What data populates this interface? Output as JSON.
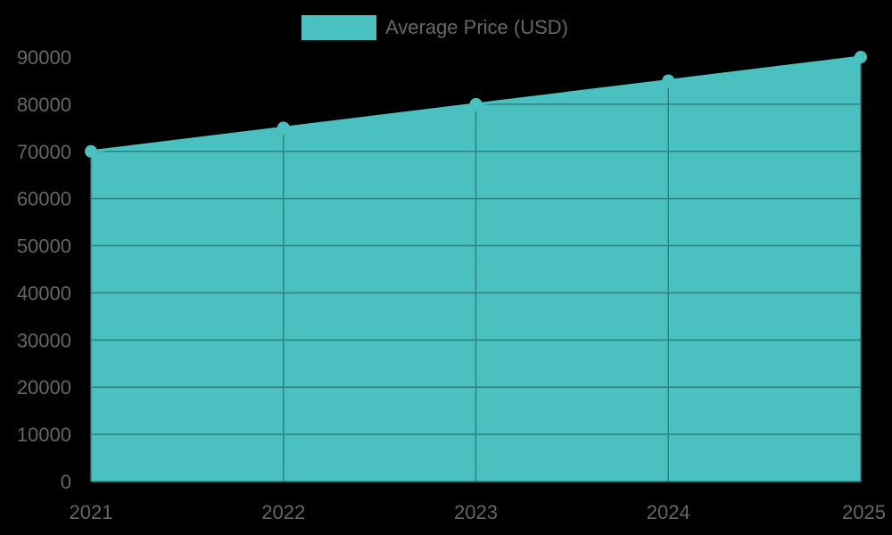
{
  "chart_data": {
    "type": "area",
    "title": "",
    "categories": [
      "2021",
      "2022",
      "2023",
      "2024",
      "2025"
    ],
    "series": [
      {
        "name": "Average Price (USD)",
        "values": [
          70000,
          75000,
          80000,
          85000,
          90000
        ],
        "color": "#4bc0c0"
      }
    ],
    "xlabel": "",
    "ylabel": "",
    "ylim": [
      0,
      90000
    ],
    "yticks": [
      "0",
      "10000",
      "20000",
      "30000",
      "40000",
      "50000",
      "60000",
      "70000",
      "80000",
      "90000"
    ],
    "grid": true,
    "legend_position": "top"
  },
  "legend": {
    "label": "Average Price (USD)"
  },
  "colors": {
    "fill": "#4bc0c0",
    "grid": "#2e7f7f",
    "text": "#666666",
    "background": "#000000"
  }
}
